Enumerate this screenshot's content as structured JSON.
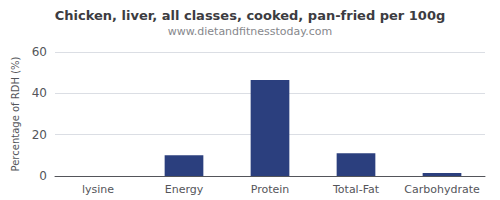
{
  "chart_data": {
    "type": "bar",
    "title": "Chicken, liver, all classes, cooked, pan-fried per 100g",
    "subtitle": "www.dietandfitnesstoday.com",
    "categories": [
      "lysine",
      "Energy",
      "Protein",
      "Total-Fat",
      "Carbohydrate"
    ],
    "values": [
      0,
      10,
      46.5,
      11,
      1.5
    ],
    "color": "#2b3f7e",
    "ylabel": "Percentage of RDH (%)",
    "ylim": [
      0,
      60
    ],
    "yticks": [
      0,
      20,
      40,
      60
    ],
    "grid": true
  }
}
